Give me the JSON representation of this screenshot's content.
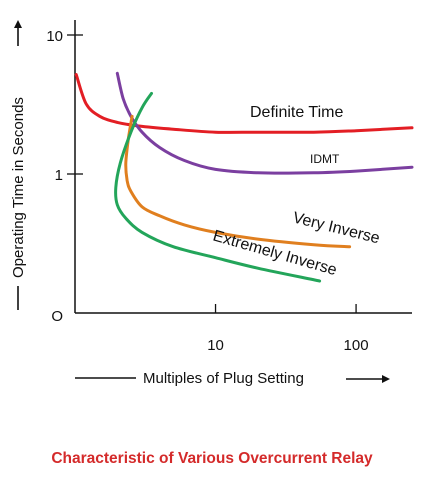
{
  "caption": "Characteristic of Various Overcurrent Relay",
  "colors": {
    "caption": "#d42a2a",
    "axis": "#111111",
    "definite_time": "#e31e24",
    "idmt": "#7b3fa0",
    "very_inverse": "#e07f1f",
    "extremely_inverse": "#23a55a"
  },
  "chart_data": {
    "type": "line",
    "xlabel": "Multiples of Plug Setting",
    "ylabel": "Operating Time in Seconds",
    "x_scale": "log",
    "y_scale": "log",
    "xlim": [
      1,
      250
    ],
    "ylim": [
      0.1,
      10
    ],
    "x_ticks": [
      {
        "value": 10,
        "label": "10"
      },
      {
        "value": 100,
        "label": "100"
      }
    ],
    "y_ticks": [
      {
        "value": 10,
        "label": "10"
      },
      {
        "value": 1,
        "label": "1"
      },
      {
        "value": 0.1,
        "label": "O"
      }
    ],
    "grid": false,
    "series": [
      {
        "name": "Definite Time",
        "color_key": "definite_time",
        "x": [
          1.02,
          1.2,
          1.5,
          2.0,
          3.0,
          5.0,
          10,
          20,
          50,
          100,
          250
        ],
        "y": [
          5.2,
          3.2,
          2.6,
          2.35,
          2.2,
          2.1,
          2.0,
          2.0,
          2.0,
          2.05,
          2.15
        ]
      },
      {
        "name": "IDMT",
        "color_key": "idmt",
        "x": [
          2.0,
          2.2,
          2.5,
          3.0,
          4.0,
          6.0,
          10,
          20,
          50,
          100,
          250
        ],
        "y": [
          5.3,
          3.5,
          2.6,
          2.0,
          1.55,
          1.25,
          1.08,
          1.02,
          1.02,
          1.05,
          1.12
        ]
      },
      {
        "name": "Very Inverse",
        "color_key": "very_inverse",
        "x": [
          2.55,
          2.4,
          2.3,
          2.35,
          2.5,
          3.0,
          4.0,
          6.0,
          10,
          20,
          50,
          90
        ],
        "y": [
          2.6,
          1.8,
          1.2,
          0.9,
          0.75,
          0.58,
          0.5,
          0.43,
          0.38,
          0.34,
          0.31,
          0.3
        ]
      },
      {
        "name": "Extremely Inverse",
        "color_key": "extremely_inverse",
        "x": [
          3.5,
          3.0,
          2.5,
          2.1,
          1.95,
          2.0,
          2.3,
          3.0,
          5.0,
          10,
          20,
          55
        ],
        "y": [
          3.8,
          3.0,
          2.0,
          1.2,
          0.8,
          0.6,
          0.48,
          0.38,
          0.3,
          0.25,
          0.21,
          0.17
        ]
      }
    ],
    "annotations": [
      {
        "text": "Definite Time",
        "series": "Definite Time"
      },
      {
        "text": "IDMT",
        "series": "IDMT"
      },
      {
        "text": "Very Inverse",
        "series": "Very Inverse"
      },
      {
        "text": "Extremely Inverse",
        "series": "Extremely Inverse"
      }
    ]
  }
}
